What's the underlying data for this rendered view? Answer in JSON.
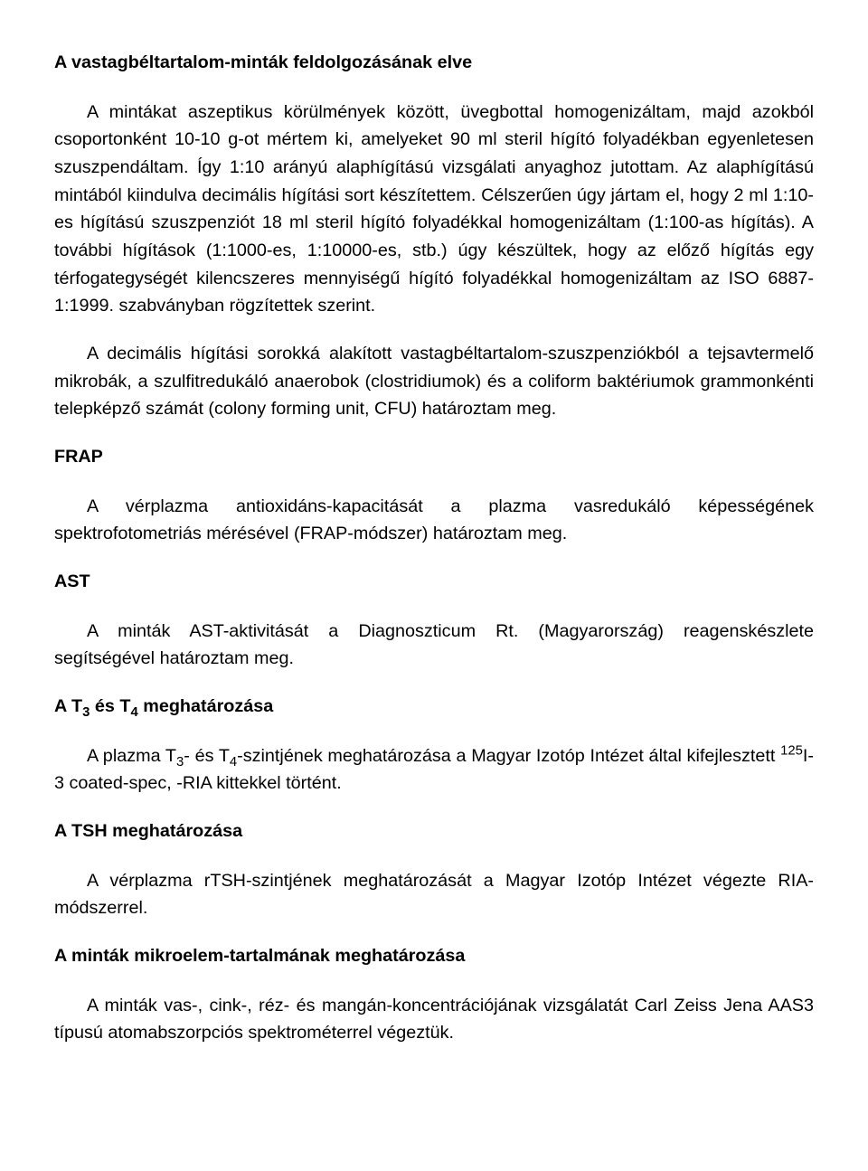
{
  "section1": {
    "heading": "A vastagbéltartalom-minták feldolgozásának elve",
    "p1a": "A mintákat aszeptikus körülmények között, üvegbottal homogenizáltam, majd azokból csoportonként 10-10 g-ot mértem ki, amelyeket 90 ml steril hígító folyadékban egyenletesen szuszpendáltam. Így 1:10 arányú alaphígítású vizsgálati anyaghoz jutottam.",
    "p1b": "Az alaphígítású mintából kiindulva decimális hígítási sort készítettem. Célszerűen úgy jártam el, hogy 2 ml 1:10-es hígítású szuszpenziót 18 ml steril hígító folyadékkal homogenizáltam (1:100-as hígítás). A további hígítások (1:1000-es, 1:10000-es, stb.) úgy készültek, hogy az előző hígítás egy térfogategységét kilencszeres mennyiségű hígító folyadékkal homogenizáltam az ISO 6887-1:1999. szabványban rögzítettek szerint.",
    "p2": "A decimális hígítási sorokká alakított vastagbéltartalom-szuszpenziókból a tejsavtermelő mikrobák, a szulfitredukáló anaerobok (clostridiumok) és a coliform baktériumok grammonkénti telepképző számát (colony forming unit, CFU) határoztam meg."
  },
  "frap": {
    "heading": "FRAP",
    "p": "A vérplazma antioxidáns-kapacitását a plazma vasredukáló képességének spektrofotometriás mérésével (FRAP-módszer) határoztam meg."
  },
  "ast": {
    "heading": "AST",
    "p": "A minták AST-aktivitását a Diagnoszticum Rt. (Magyarország) reagenskészlete segítségével határoztam meg."
  },
  "t3t4": {
    "heading_pre": "A T",
    "heading_sub1": "3",
    "heading_mid": " és T",
    "heading_sub2": "4",
    "heading_post": " meghatározása",
    "p_pre": "A plazma T",
    "p_sub1": "3",
    "p_mid": "- és T",
    "p_sub2": "4",
    "p_after": "-szintjének meghatározása a Magyar Izotóp Intézet által kifejlesztett ",
    "p_sup": "125",
    "p_tail": "I-3 coated-spec, -RIA kittekkel történt."
  },
  "tsh": {
    "heading": "A TSH meghatározása",
    "p": "A vérplazma rTSH-szintjének meghatározását a Magyar Izotóp Intézet végezte RIA-módszerrel."
  },
  "micro": {
    "heading": "A minták mikroelem-tartalmának meghatározása",
    "p": "A minták vas-, cink-, réz- és mangán-koncentrációjának vizsgálatát Carl Zeiss Jena AAS3 típusú atomabszorpciós spektrométerrel végeztük."
  }
}
